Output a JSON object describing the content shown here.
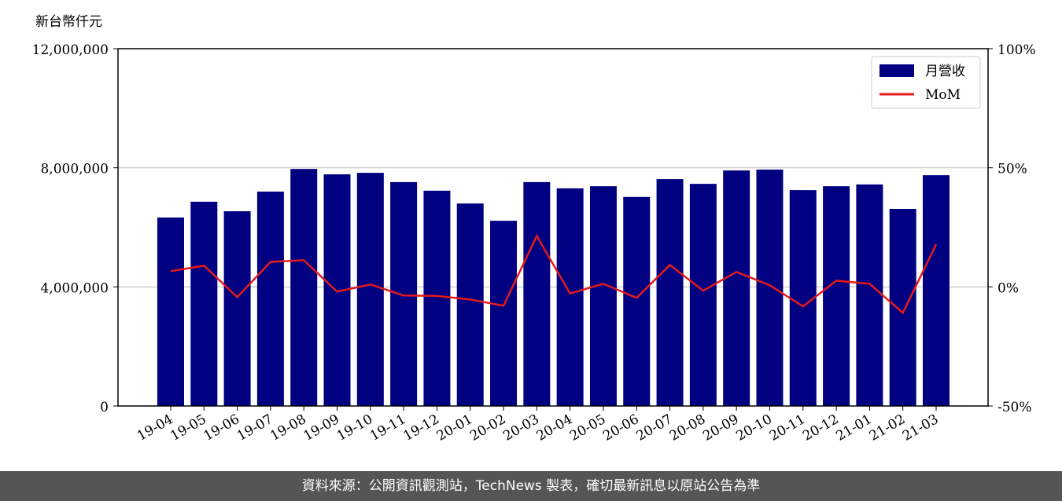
{
  "chart_data": {
    "type": "bar_line",
    "y_label": "新台幣仟元",
    "categories": [
      "19-04",
      "19-05",
      "19-06",
      "19-07",
      "19-08",
      "19-09",
      "19-10",
      "19-11",
      "19-12",
      "20-01",
      "20-02",
      "20-03",
      "20-04",
      "20-05",
      "20-06",
      "20-07",
      "20-08",
      "20-09",
      "20-10",
      "20-11",
      "20-12",
      "21-01",
      "21-02",
      "21-03"
    ],
    "series": [
      {
        "name": "月營收",
        "type": "bar",
        "color": "#000080",
        "values": [
          6330000,
          6860000,
          6540000,
          7200000,
          7960000,
          7780000,
          7830000,
          7520000,
          7230000,
          6800000,
          6220000,
          7520000,
          7310000,
          7380000,
          7020000,
          7620000,
          7460000,
          7910000,
          7940000,
          7250000,
          7380000,
          7440000,
          6620000,
          7750000
        ]
      },
      {
        "name": "MoM",
        "type": "line",
        "axis": "y2",
        "color": "#e41a1c",
        "values": [
          6.6,
          8.9,
          -4.3,
          10.5,
          11.2,
          -2.0,
          1.0,
          -3.6,
          -3.8,
          -5.3,
          -7.9,
          21.4,
          -2.8,
          1.3,
          -4.6,
          9.2,
          -1.6,
          6.3,
          0.7,
          -8.2,
          2.6,
          1.3,
          -10.9,
          17.8
        ]
      }
    ],
    "ylim": [
      0,
      12000000
    ],
    "yticks": [
      0,
      {
        "value": 4000000,
        "label": "4,000,000"
      },
      {
        "value": 8000000,
        "label": "8,000,000"
      },
      {
        "value": 12000000,
        "label": "12,000,000"
      }
    ],
    "y2lim": [
      -50,
      100
    ],
    "y2ticks": [
      {
        "value": -50,
        "label": "-50%"
      },
      {
        "value": 0,
        "label": "0%"
      },
      {
        "value": 50,
        "label": "50%"
      },
      {
        "value": 100,
        "label": "100%"
      }
    ],
    "grid": true,
    "legend": "upper right"
  },
  "footer": "資料來源：公開資訊觀測站，TechNews 製表，確切最新訊息以原站公告為準"
}
